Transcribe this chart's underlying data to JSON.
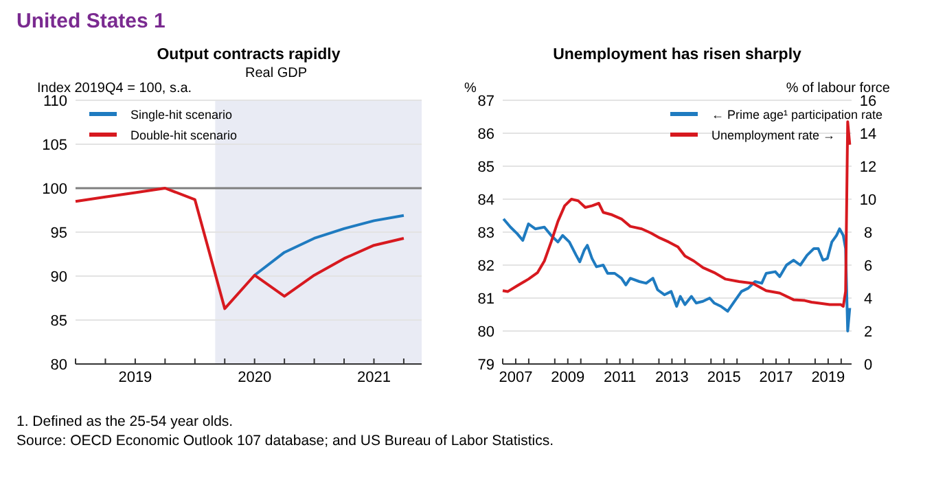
{
  "chart_data": [
    {
      "type": "line",
      "title": "Output contracts rapidly",
      "subtitle": "Real GDP",
      "ylabel": "Index 2019Q4 = 100, s.a.",
      "annotations": [
        "United States 1"
      ],
      "x": [
        2019,
        2019.25,
        2019.5,
        2019.75,
        2020,
        2020.25,
        2020.5,
        2020.75,
        2021,
        2021.25,
        2021.5,
        2021.75
      ],
      "series": [
        {
          "name": "Single-hit scenario",
          "color": "#1f7bc0",
          "values": [
            null,
            null,
            null,
            null,
            null,
            null,
            90.1,
            92.7,
            94.3,
            95.4,
            96.3,
            96.9
          ]
        },
        {
          "name": "Double-hit scenario",
          "color": "#d7191f",
          "values": [
            98.5,
            99.0,
            99.5,
            100,
            98.7,
            86.3,
            90.1,
            87.7,
            90.1,
            92.0,
            93.5,
            94.3
          ]
        }
      ],
      "xlim": [
        2019,
        2021.9
      ],
      "xticks": [
        {
          "value": 2019,
          "label": null
        },
        {
          "value": 2019.25,
          "label": null
        },
        {
          "value": 2019.5,
          "label": "2019"
        },
        {
          "value": 2019.75,
          "label": null
        },
        {
          "value": 2020,
          "label": null
        },
        {
          "value": 2020.25,
          "label": null
        },
        {
          "value": 2020.5,
          "label": "2020"
        },
        {
          "value": 2020.75,
          "label": null
        },
        {
          "value": 2021,
          "label": null
        },
        {
          "value": 2021.25,
          "label": null
        },
        {
          "value": 2021.5,
          "label": "2021"
        },
        {
          "value": 2021.75,
          "label": null
        }
      ],
      "ylim": [
        80,
        110
      ],
      "yticks": [
        80,
        85,
        90,
        95,
        100,
        105,
        110
      ],
      "ref_lines": [
        {
          "axis": "y",
          "value": 100,
          "color": "#7f7f7f"
        }
      ],
      "bands": [
        {
          "axis": "x",
          "from": 2020.17,
          "to": 2021.9,
          "color": "#e9ebf4"
        }
      ],
      "grid": "y",
      "legend": "top left",
      "line_style": "solid",
      "marker": "none"
    },
    {
      "type": "line",
      "title": "Unemployment has risen sharply",
      "ylabel": "%",
      "y2label": "% of labour force",
      "annotations": [
        "1. Defined as the 25-54 year olds.",
        "Source: OECD Economic Outlook 107 database; and US Bureau of Labor Statistics."
      ],
      "series": [
        {
          "name": "← Prime age¹ participation rate",
          "color": "#1f7bc0",
          "x": [
            2007.03,
            2007.3,
            2007.56,
            2007.77,
            2007.99,
            2008.25,
            2008.6,
            2008.86,
            2009.12,
            2009.3,
            2009.56,
            2009.82,
            2009.96,
            2010.13,
            2010.25,
            2010.43,
            2010.6,
            2010.86,
            2011.03,
            2011.3,
            2011.56,
            2011.73,
            2011.9,
            2012.25,
            2012.51,
            2012.77,
            2012.95,
            2013.21,
            2013.47,
            2013.68,
            2013.82,
            2014.0,
            2014.25,
            2014.43,
            2014.69,
            2014.95,
            2015.12,
            2015.38,
            2015.64,
            2015.9,
            2016.17,
            2016.43,
            2016.69,
            2016.95,
            2017.12,
            2017.47,
            2017.64,
            2017.9,
            2018.17,
            2018.43,
            2018.69,
            2018.95,
            2019.12,
            2019.3,
            2019.47,
            2019.64,
            2019.82,
            2019.94,
            2020.08,
            2020.17,
            2020.25,
            2020.33
          ],
          "values": [
            83.4,
            83.15,
            82.95,
            82.75,
            83.25,
            83.1,
            83.15,
            82.9,
            82.7,
            82.9,
            82.7,
            82.3,
            82.1,
            82.45,
            82.6,
            82.2,
            81.95,
            82.0,
            81.75,
            81.75,
            81.6,
            81.4,
            81.6,
            81.5,
            81.45,
            81.6,
            81.25,
            81.1,
            81.2,
            80.75,
            81.05,
            80.8,
            81.05,
            80.85,
            80.9,
            81.0,
            80.85,
            80.75,
            80.6,
            80.9,
            81.2,
            81.3,
            81.5,
            81.45,
            81.75,
            81.8,
            81.65,
            82.0,
            82.15,
            82.0,
            82.3,
            82.5,
            82.5,
            82.15,
            82.2,
            82.7,
            82.9,
            83.1,
            82.9,
            82.5,
            80.0,
            80.7
          ]
        },
        {
          "name": "Unemployment rate →",
          "color": "#d7191f",
          "axis": "y2",
          "x": [
            2007.0,
            2007.2,
            2007.56,
            2007.99,
            2008.34,
            2008.6,
            2008.86,
            2009.12,
            2009.38,
            2009.64,
            2009.9,
            2010.17,
            2010.43,
            2010.69,
            2010.86,
            2011.2,
            2011.56,
            2011.9,
            2012.34,
            2012.69,
            2013.03,
            2013.38,
            2013.73,
            2014.0,
            2014.34,
            2014.69,
            2015.12,
            2015.56,
            2016.08,
            2016.6,
            2017.12,
            2017.64,
            2018.17,
            2018.6,
            2018.86,
            2019.12,
            2019.56,
            2019.99,
            2020.08,
            2020.17,
            2020.25,
            2020.33
          ],
          "values": [
            4.45,
            4.4,
            4.75,
            5.15,
            5.55,
            6.25,
            7.4,
            8.65,
            9.6,
            10.0,
            9.9,
            9.5,
            9.6,
            9.75,
            9.2,
            9.05,
            8.8,
            8.35,
            8.2,
            7.95,
            7.65,
            7.4,
            7.1,
            6.55,
            6.25,
            5.85,
            5.55,
            5.15,
            5.0,
            4.9,
            4.45,
            4.3,
            3.9,
            3.85,
            3.75,
            3.7,
            3.6,
            3.6,
            3.5,
            4.4,
            14.7,
            13.3
          ]
        }
      ],
      "xlim": [
        2007,
        2020.4
      ],
      "xticks": [
        {
          "value": 2007,
          "label": null
        },
        {
          "value": 2007.5,
          "label": "2007"
        },
        {
          "value": 2008,
          "label": null
        },
        {
          "value": 2009,
          "label": null
        },
        {
          "value": 2009.5,
          "label": "2009"
        },
        {
          "value": 2010,
          "label": null
        },
        {
          "value": 2011,
          "label": null
        },
        {
          "value": 2011.5,
          "label": "2011"
        },
        {
          "value": 2012,
          "label": null
        },
        {
          "value": 2013,
          "label": null
        },
        {
          "value": 2013.5,
          "label": "2013"
        },
        {
          "value": 2014,
          "label": null
        },
        {
          "value": 2015,
          "label": null
        },
        {
          "value": 2015.5,
          "label": "2015"
        },
        {
          "value": 2016,
          "label": null
        },
        {
          "value": 2017,
          "label": null
        },
        {
          "value": 2017.5,
          "label": "2017"
        },
        {
          "value": 2018,
          "label": null
        },
        {
          "value": 2019,
          "label": null
        },
        {
          "value": 2019.5,
          "label": "2019"
        },
        {
          "value": 2020,
          "label": null
        }
      ],
      "ylim": [
        79,
        87
      ],
      "yticks": [
        79,
        80,
        81,
        82,
        83,
        84,
        85,
        86,
        87
      ],
      "y2lim": [
        0,
        16
      ],
      "y2ticks": [
        0,
        2,
        4,
        6,
        8,
        10,
        12,
        14,
        16
      ],
      "grid": "y",
      "legend": "top right",
      "line_style": "solid",
      "marker": "none"
    }
  ]
}
